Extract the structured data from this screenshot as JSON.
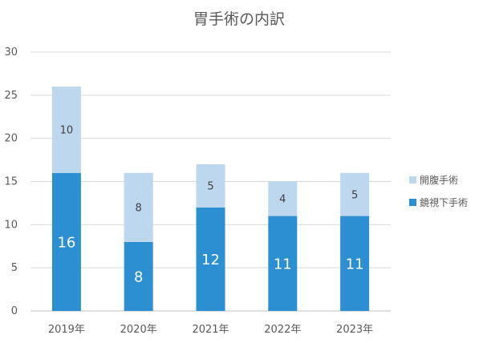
{
  "chart_data": {
    "type": "bar",
    "stacked": true,
    "title": "胃手術の内訳",
    "categories": [
      "2019年",
      "2020年",
      "2021年",
      "2022年",
      "2023年"
    ],
    "series": [
      {
        "name": "鏡視下手術",
        "values": [
          16,
          8,
          12,
          11,
          11
        ],
        "color": "#2b8fd2",
        "label_color": "#ffffff"
      },
      {
        "name": "開腹手術",
        "values": [
          10,
          8,
          5,
          4,
          5
        ],
        "color": "#bdd7ee",
        "label_color": "#404040"
      }
    ],
    "legend_order": [
      "開腹手術",
      "鏡視下手術"
    ],
    "ylim": [
      0,
      30
    ],
    "yticks": [
      0,
      5,
      10,
      15,
      20,
      25,
      30
    ],
    "grid": true,
    "legend_position": "right"
  }
}
